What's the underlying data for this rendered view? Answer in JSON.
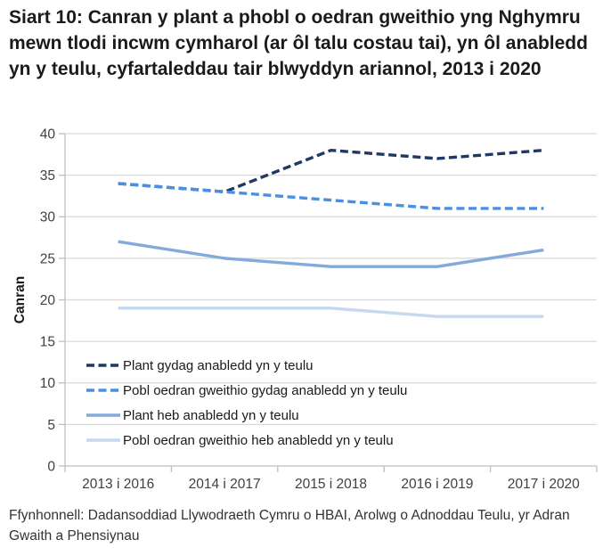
{
  "title": "Siart 10: Canran y plant a phobl o oedran gweithio yng Nghymru mewn tlodi incwm cymharol (ar ôl talu costau tai), yn ôl anabledd yn y teulu, cyfartaleddau tair blwyddyn ariannol, 2013 i 2020",
  "source": "Ffynhonnell: Dadansoddiad Llywodraeth Cymru o HBAI, Arolwg o Adnoddau Teulu, yr Adran Gwaith a Phensiynau",
  "colors": {
    "grid": "#d9d9d9",
    "axis": "#bfbfbf",
    "tick_text": "#404040",
    "title_text": "#1a1a1a"
  },
  "chart_data": {
    "type": "line",
    "title": "Siart 10: Canran y plant a phobl o oedran gweithio yng Nghymru mewn tlodi incwm cymharol (ar ôl talu costau tai), yn ôl anabledd yn y teulu, cyfartaleddau tair blwyddyn ariannol, 2013 i 2020",
    "xlabel": "",
    "ylabel": "Canran",
    "ylim": [
      0,
      40
    ],
    "y_ticks": [
      0,
      5,
      10,
      15,
      20,
      25,
      30,
      35,
      40
    ],
    "grid": "horizontal",
    "legend_position": "inside-lower-left",
    "categories": [
      "2013 i 2016",
      "2014 i 2017",
      "2015 i 2018",
      "2016 i 2019",
      "2017 i 2020"
    ],
    "series": [
      {
        "name": "Plant gydag anabledd yn y teulu",
        "color": "#1F3864",
        "dashed": true,
        "values": [
          34,
          33,
          38,
          37,
          38
        ]
      },
      {
        "name": "Pobl oedran gweithio gydag anabledd yn y teulu",
        "color": "#4A90E2",
        "dashed": true,
        "values": [
          34,
          33,
          32,
          31,
          31
        ]
      },
      {
        "name": "Plant heb anabledd yn y teulu",
        "color": "#84A9DB",
        "dashed": false,
        "values": [
          27,
          25,
          24,
          24,
          26
        ]
      },
      {
        "name": "Pobl oedran gweithio heb anabledd yn y teulu",
        "color": "#C6D9F1",
        "dashed": false,
        "values": [
          19,
          19,
          19,
          18,
          18
        ]
      }
    ]
  }
}
